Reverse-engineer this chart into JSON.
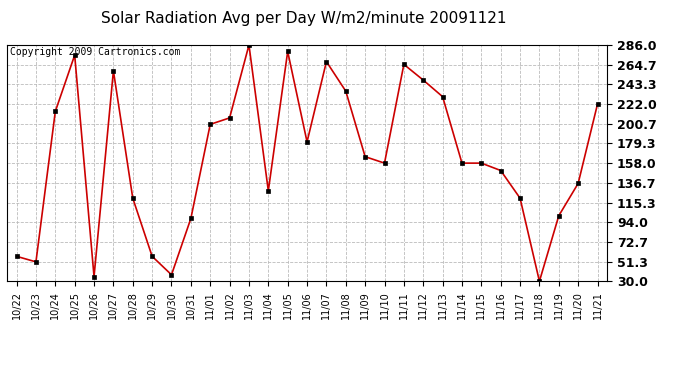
{
  "title": "Solar Radiation Avg per Day W/m2/minute 20091121",
  "copyright": "Copyright 2009 Cartronics.com",
  "dates": [
    "10/22",
    "10/23",
    "10/24",
    "10/25",
    "10/26",
    "10/27",
    "10/28",
    "10/29",
    "10/30",
    "10/31",
    "11/01",
    "11/02",
    "11/03",
    "11/04",
    "11/05",
    "11/06",
    "11/07",
    "11/08",
    "11/09",
    "11/10",
    "11/11",
    "11/12",
    "11/13",
    "11/14",
    "11/15",
    "11/16",
    "11/17",
    "11/18",
    "11/19",
    "11/20",
    "11/21"
  ],
  "values": [
    57,
    51,
    214,
    275,
    35,
    258,
    120,
    57,
    37,
    98,
    200,
    207,
    286,
    128,
    279,
    181,
    268,
    236,
    165,
    158,
    265,
    248,
    230,
    158,
    158,
    150,
    120,
    30,
    101,
    136,
    222
  ],
  "line_color": "#cc0000",
  "marker_color": "#000000",
  "bg_color": "#ffffff",
  "grid_color": "#bbbbbb",
  "ylim_min": 30.0,
  "ylim_max": 286.0,
  "yticks": [
    30.0,
    51.3,
    72.7,
    94.0,
    115.3,
    136.7,
    158.0,
    179.3,
    200.7,
    222.0,
    243.3,
    264.7,
    286.0
  ],
  "title_fontsize": 11,
  "copyright_fontsize": 7,
  "ytick_fontsize": 9,
  "xtick_fontsize": 7
}
